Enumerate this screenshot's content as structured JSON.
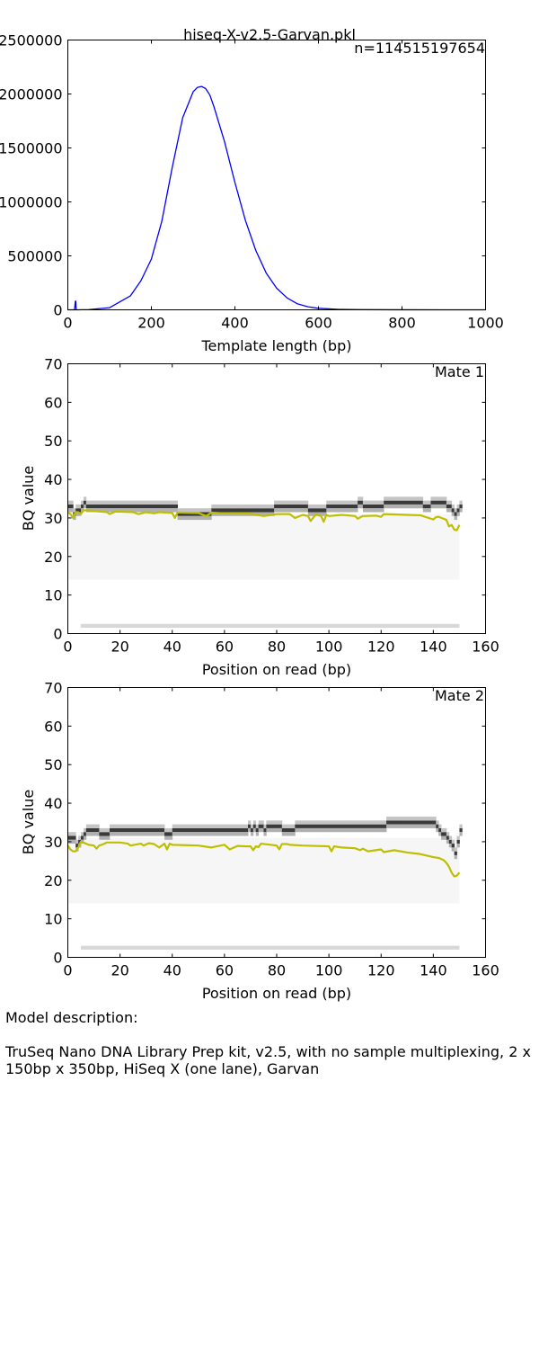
{
  "figure": {
    "title": "hiseq-X-v2.5-Garvan.pkl",
    "count_label": "n=114515197654"
  },
  "chart_data": [
    {
      "type": "line",
      "title": "hiseq-X-v2.5-Garvan.pkl",
      "annotation": "n=114515197654",
      "xlabel": "Template length (bp)",
      "ylabel": "",
      "xlim": [
        0,
        1000
      ],
      "ylim": [
        0,
        2500000
      ],
      "xticks": [
        0,
        200,
        400,
        600,
        800,
        1000
      ],
      "yticks": [
        0,
        500000,
        1000000,
        1500000,
        2000000,
        2500000
      ],
      "ytick_labels": [
        "0",
        "500000",
        "1000000",
        "1500000",
        "2000000",
        "2500000"
      ],
      "grid": false,
      "color": "#0000ff",
      "series": [
        {
          "x": [
            0,
            16,
            18,
            19,
            20,
            22,
            50,
            100,
            150,
            175,
            200,
            225,
            250,
            275,
            300,
            310,
            320,
            330,
            340,
            350,
            375,
            400,
            425,
            450,
            475,
            500,
            525,
            550,
            575,
            600,
            650,
            700,
            800,
            900,
            1000
          ],
          "values": [
            0,
            0,
            80000,
            80000,
            0,
            0,
            2000,
            20000,
            130000,
            270000,
            470000,
            820000,
            1320000,
            1780000,
            2020000,
            2060000,
            2070000,
            2050000,
            1990000,
            1880000,
            1560000,
            1180000,
            830000,
            550000,
            340000,
            200000,
            110000,
            55000,
            28000,
            14000,
            4000,
            1500,
            300,
            50,
            0
          ]
        }
      ]
    },
    {
      "type": "heatmap",
      "annotation": "Mate 1",
      "xlabel": "Position on read (bp)",
      "ylabel": "BQ value",
      "xlim": [
        0,
        160
      ],
      "ylim": [
        0,
        70
      ],
      "xticks": [
        0,
        20,
        40,
        60,
        80,
        100,
        120,
        140,
        160
      ],
      "yticks": [
        0,
        10,
        20,
        30,
        40,
        50,
        60,
        70
      ],
      "grid": false,
      "read_length": 150,
      "mode_bq": {
        "x": [
          0,
          1,
          2,
          3,
          4,
          5,
          6,
          7,
          41,
          42,
          91,
          92,
          98,
          99,
          110,
          111,
          112,
          113,
          120,
          121,
          135,
          136,
          142,
          143,
          145,
          147,
          148,
          149,
          150
        ],
        "values": [
          33,
          33,
          31,
          32,
          32,
          33,
          34,
          33,
          33,
          31,
          33,
          32,
          32,
          33,
          33,
          34,
          34,
          33,
          33,
          34,
          34,
          33,
          34,
          34,
          33,
          32,
          31,
          32,
          33
        ]
      },
      "low_bq_level": 2,
      "mean_bq": {
        "color": "#bfbf00",
        "x": [
          0,
          1,
          2,
          3,
          4,
          5,
          6,
          7,
          10,
          15,
          16,
          18,
          20,
          25,
          27,
          30,
          33,
          35,
          40,
          41,
          42,
          43,
          50,
          53,
          55,
          60,
          70,
          75,
          80,
          85,
          87,
          90,
          92,
          93,
          95,
          97,
          98,
          99,
          100,
          105,
          110,
          111,
          113,
          118,
          120,
          121,
          130,
          135,
          140,
          141,
          142,
          145,
          146,
          147,
          148,
          149,
          150
        ],
        "values": [
          31.5,
          31,
          30,
          31.5,
          31.5,
          31,
          32,
          32,
          31.8,
          31.5,
          31,
          31.6,
          31.6,
          31.5,
          31,
          31.5,
          31.2,
          31.5,
          31.3,
          30,
          31.4,
          31.4,
          31.3,
          30.5,
          31.4,
          31.2,
          31.1,
          30.5,
          31,
          31,
          30,
          30.8,
          30.5,
          29.2,
          30.9,
          30.5,
          29,
          30.8,
          30.5,
          30.8,
          30.5,
          29.8,
          30.5,
          30.6,
          30.3,
          31,
          30.8,
          30.7,
          29.6,
          30.2,
          30.3,
          29.5,
          27.8,
          28.2,
          27,
          26.8,
          28.2
        ]
      }
    },
    {
      "type": "heatmap",
      "annotation": "Mate 2",
      "xlabel": "Position on read (bp)",
      "ylabel": "BQ value",
      "xlim": [
        0,
        160
      ],
      "ylim": [
        0,
        70
      ],
      "xticks": [
        0,
        20,
        40,
        60,
        80,
        100,
        120,
        140,
        160
      ],
      "yticks": [
        0,
        10,
        20,
        30,
        40,
        50,
        60,
        70
      ],
      "grid": false,
      "read_length": 150,
      "mode_bq": {
        "x": [
          0,
          2,
          3,
          4,
          5,
          6,
          7,
          15,
          16,
          36,
          37,
          39,
          40,
          68,
          69,
          70,
          71,
          72,
          73,
          74,
          75,
          76,
          77,
          81,
          82,
          86,
          87,
          101,
          102,
          121,
          122,
          140,
          142,
          145,
          147,
          148,
          150
        ],
        "values": [
          31,
          31,
          29,
          30,
          31,
          32,
          33,
          32,
          33,
          33,
          32,
          32,
          33,
          33,
          34,
          33,
          34,
          33,
          34,
          34,
          33,
          34,
          34,
          34,
          33,
          33,
          34,
          34,
          34,
          34,
          35,
          35,
          33,
          31,
          29,
          27,
          33
        ]
      },
      "low_bq_level": 2.5,
      "mean_bq": {
        "color": "#bfbf00",
        "x": [
          0,
          1,
          2,
          3,
          4,
          5,
          7,
          8,
          10,
          11,
          12,
          13,
          15,
          20,
          23,
          24,
          28,
          29,
          31,
          33,
          35,
          37,
          38,
          39,
          40,
          50,
          55,
          60,
          62,
          65,
          68,
          70,
          71,
          72,
          73,
          74,
          80,
          81,
          82,
          84,
          85,
          90,
          100,
          101,
          102,
          105,
          110,
          112,
          113,
          115,
          120,
          121,
          125,
          130,
          135,
          140,
          142,
          144,
          145,
          146,
          147,
          148,
          149,
          150
        ],
        "values": [
          29,
          28,
          27.5,
          27.5,
          28.5,
          30,
          29.5,
          29.2,
          29,
          28.2,
          29,
          29.2,
          29.8,
          29.8,
          29.5,
          29,
          29.5,
          29,
          29.6,
          29.4,
          28.5,
          29.5,
          28,
          29.5,
          29.2,
          29,
          28.5,
          29.2,
          28,
          28.9,
          28.8,
          28.8,
          27.8,
          28.8,
          28.6,
          29.5,
          29,
          28,
          29.4,
          29.4,
          29.2,
          29,
          28.8,
          27.5,
          28.8,
          28.5,
          28.3,
          27.8,
          28.2,
          27.5,
          28,
          27.3,
          27.8,
          27.2,
          26.8,
          26,
          25.8,
          25.2,
          24.5,
          23.5,
          22,
          21,
          21.2,
          22
        ]
      }
    }
  ],
  "description": {
    "heading": "Model description:",
    "text": "TruSeq Nano DNA Library Prep kit, v2.5, with no sample multiplexing, 2 x 150bp x 350bp, HiSeq X (one lane), Garvan"
  }
}
